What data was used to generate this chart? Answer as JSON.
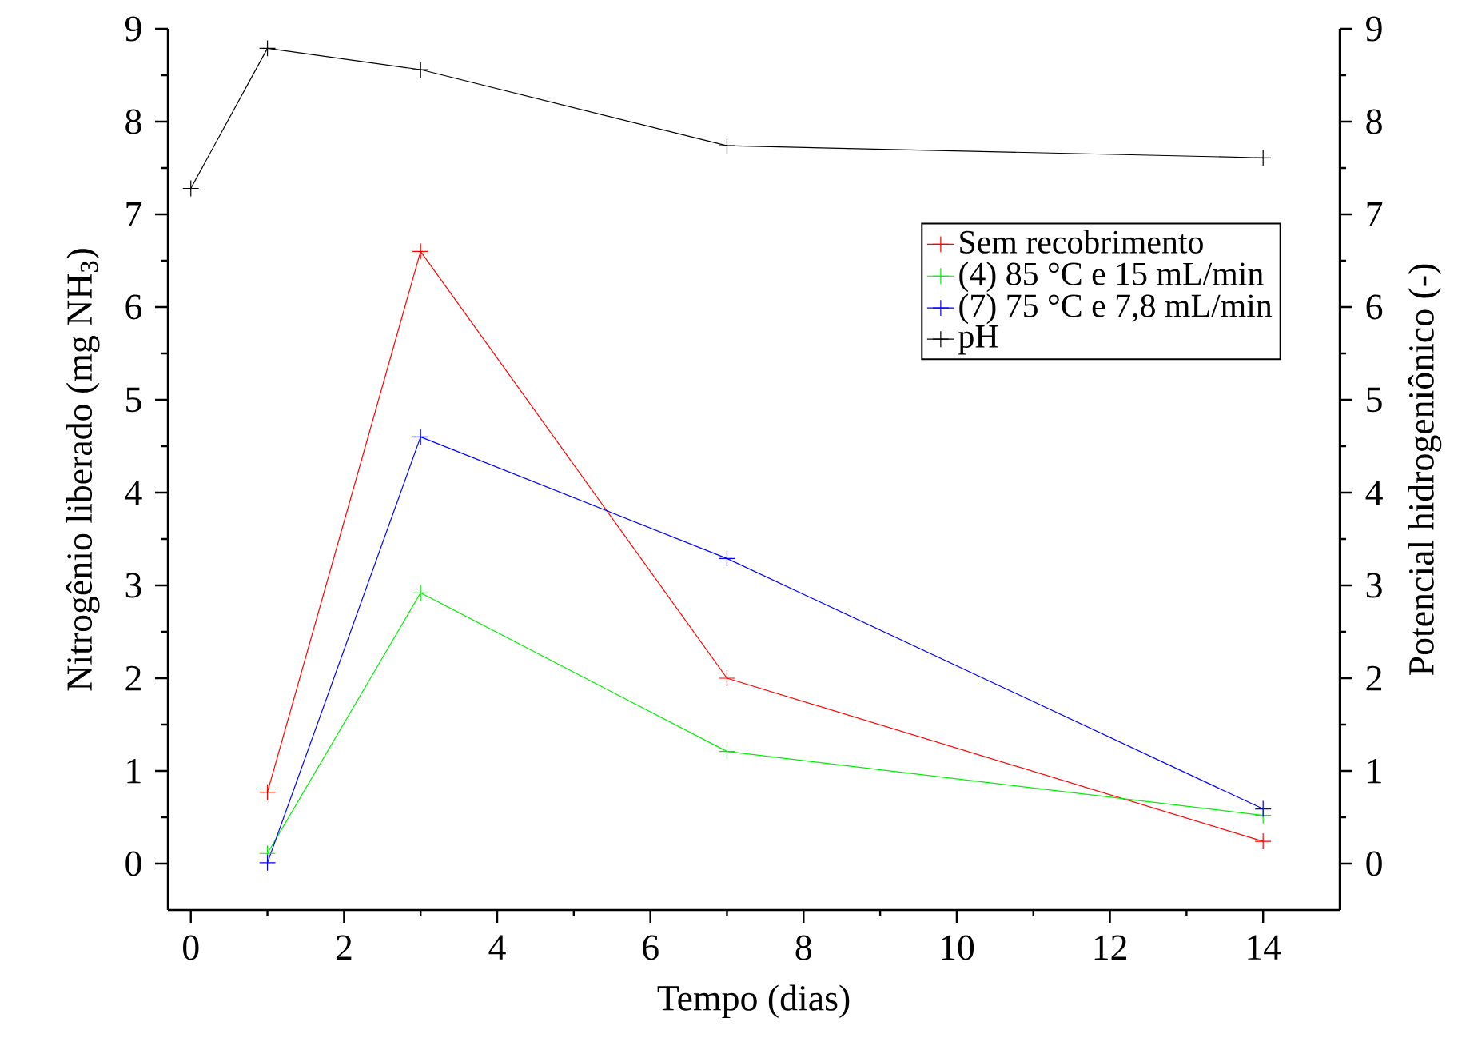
{
  "chart_data": {
    "type": "line",
    "xlabel": "Tempo (dias)",
    "ylabel": "Nitrogênio liberado (mg NH$_{3}$)",
    "y2label": "Potencial hidrogeniônico (-)",
    "xlim": [
      -0.3,
      15
    ],
    "ylim": [
      -0.5,
      9
    ],
    "y2lim": [
      -0.5,
      9
    ],
    "xticks": [
      0,
      2,
      4,
      6,
      8,
      10,
      12,
      14
    ],
    "yticks": [
      0,
      1,
      2,
      3,
      4,
      5,
      6,
      7,
      8,
      9
    ],
    "y2ticks": [
      0,
      1,
      2,
      3,
      4,
      5,
      6,
      7,
      8,
      9
    ],
    "marker": "cross",
    "line_style": "solid",
    "grid": false,
    "legend": "top right",
    "series": [
      {
        "name": "Sem recobrimento",
        "color": "#ff0000",
        "x": [
          1,
          3,
          7,
          14
        ],
        "values": [
          0.77,
          6.6,
          2.0,
          0.24
        ]
      },
      {
        "name": "(4) 85 °C e 15 mL/min",
        "color": "#00ee00",
        "x": [
          1,
          3,
          7,
          14
        ],
        "values": [
          0.11,
          2.92,
          1.21,
          0.52
        ]
      },
      {
        "name": "(7) 75 °C e 7,8 mL/min",
        "color": "#0000ff",
        "x": [
          1,
          3,
          7,
          14
        ],
        "values": [
          0.01,
          4.6,
          3.29,
          0.59
        ]
      },
      {
        "name": "pH",
        "color": "#000000",
        "axis": "y2",
        "x": [
          0,
          1,
          3,
          7,
          14
        ],
        "values": [
          7.28,
          8.79,
          8.56,
          7.74,
          7.61
        ]
      }
    ]
  }
}
